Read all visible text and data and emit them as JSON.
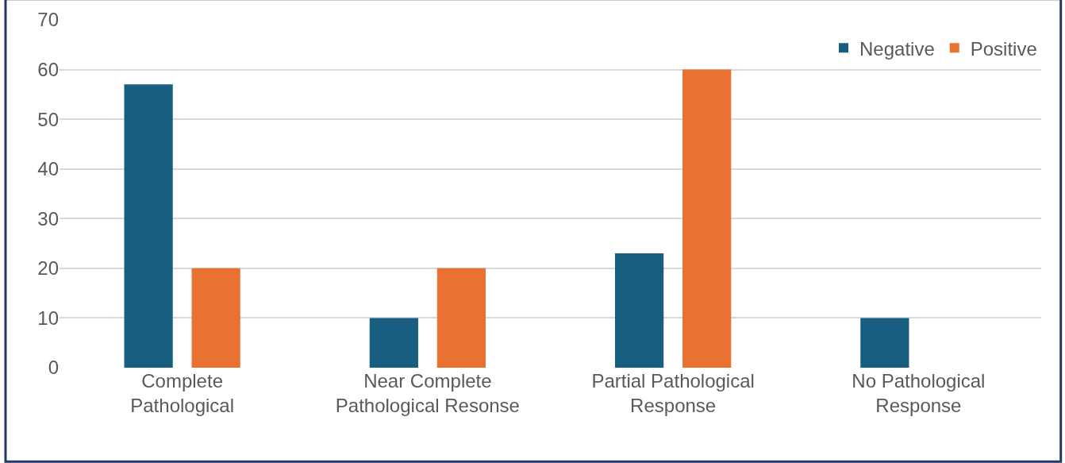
{
  "chart_data": {
    "type": "bar",
    "categories": [
      "Complete Pathological",
      "Near Complete Pathological Resonse",
      "Partial Pathological Response",
      "No Pathological Response"
    ],
    "series": [
      {
        "name": "Negative",
        "color": "#175e80",
        "values": [
          57,
          10,
          23,
          10
        ]
      },
      {
        "name": "Positive",
        "color": "#e97132",
        "values": [
          20,
          20,
          60,
          0
        ]
      }
    ],
    "ylim": [
      0,
      70
    ],
    "yticks": [
      0,
      10,
      20,
      30,
      40,
      50,
      60,
      70
    ],
    "grid": "y",
    "legend": "top right"
  }
}
